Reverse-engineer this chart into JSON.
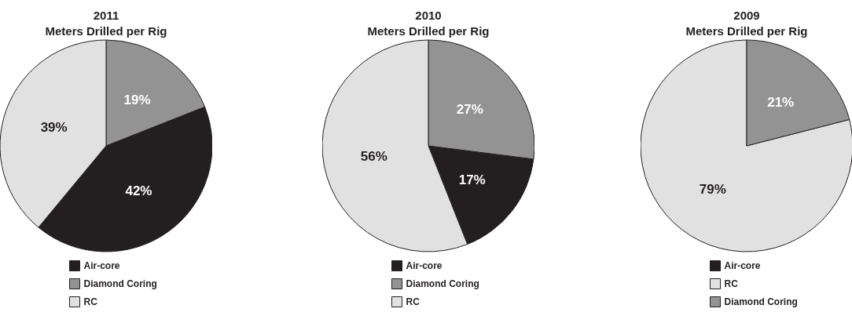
{
  "chart_data": [
    {
      "type": "pie",
      "title": "2011\nMeters Drilled per Rig",
      "categories": [
        "Air-core",
        "Diamond Coring",
        "RC"
      ],
      "values": [
        42,
        19,
        39
      ],
      "value_labels": [
        "42%",
        "19%",
        "39%"
      ],
      "colors": [
        "#231f20",
        "#939393",
        "#e1e1e1"
      ],
      "legend": "bottom"
    },
    {
      "type": "pie",
      "title": "2010\nMeters Drilled per Rig",
      "categories": [
        "Air-core",
        "Diamond Coring",
        "RC"
      ],
      "values": [
        17,
        27,
        56
      ],
      "value_labels": [
        "17%",
        "27%",
        "56%"
      ],
      "colors": [
        "#231f20",
        "#939393",
        "#e1e1e1"
      ],
      "legend": "bottom"
    },
    {
      "type": "pie",
      "title": "2009\nMeters Drilled per Rig",
      "categories": [
        "Air-core",
        "RC",
        "Diamond Coring"
      ],
      "values": [
        0,
        79,
        21
      ],
      "value_labels": [
        null,
        "79%",
        "21%"
      ],
      "colors": [
        "#231f20",
        "#e1e1e1",
        "#939393"
      ],
      "legend": "bottom"
    }
  ]
}
